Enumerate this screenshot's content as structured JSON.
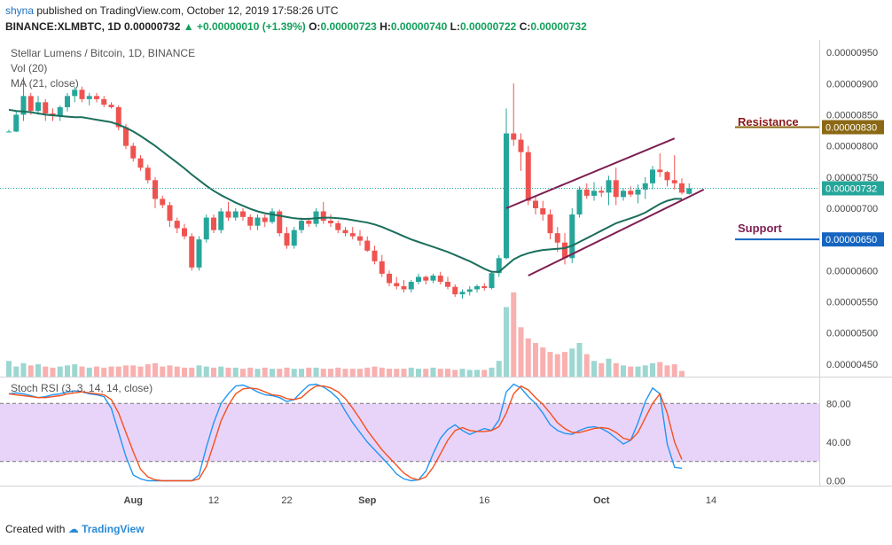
{
  "header": {
    "user": "shyna",
    "published_text": "published on TradingView.com, October 12, 2019 17:58:26 UTC",
    "symbol_line": "BINANCE:XLMBTC, 1D 0.00000732",
    "change": "+0.00000010 (+1.39%)",
    "o_label": "O:",
    "o_value": "0.00000723",
    "h_label": "H:",
    "h_value": "0.00000740",
    "l_label": "L:",
    "l_value": "0.00000722",
    "c_label": "C:",
    "c_value": "0.00000732"
  },
  "legend": {
    "title": "Stellar Lumens / Bitcoin, 1D, BINANCE",
    "vol": "Vol (20)",
    "ma": "MA (21, close)",
    "stoch": "Stoch RSI (3, 3, 14, 14, close)"
  },
  "annotations": {
    "resistance": "Resistance",
    "support": "Support"
  },
  "footer": {
    "created_with": "Created with",
    "brand": "TradingView"
  },
  "colors": {
    "up": "#26a69a",
    "down": "#ef5350",
    "ma": "#1b6e5c",
    "channel": "#7e1f52",
    "resistance": "#8b6914",
    "support": "#1565c0",
    "stoch_k": "#2196f3",
    "stoch_d": "#f4511e",
    "stoch_band": "#e1c6f7"
  },
  "chart_data": [
    {
      "type": "candlestick",
      "title": "Stellar Lumens / Bitcoin, 1D, BINANCE",
      "x_tick_labels": [
        "Aug",
        "12",
        "22",
        "Sep",
        "16",
        "Oct",
        "14"
      ],
      "y_tick_labels": [
        "0.00000950",
        "0.00000900",
        "0.00000850",
        "0.00000800",
        "0.00000750",
        "0.00000700",
        "0.00000600",
        "0.00000550",
        "0.00000500",
        "0.00000450"
      ],
      "ylim": [
        4.3e-06,
        9.7e-06
      ],
      "price_labels": {
        "resistance": "0.00000830",
        "current": "0.00000732",
        "support": "0.00000650"
      },
      "ohlc": [
        [
          822,
          826,
          822,
          823
        ],
        [
          823,
          855,
          822,
          850
        ],
        [
          850,
          910,
          840,
          880
        ],
        [
          880,
          885,
          850,
          856
        ],
        [
          856,
          880,
          850,
          870
        ],
        [
          870,
          875,
          840,
          852
        ],
        [
          852,
          860,
          840,
          848
        ],
        [
          848,
          865,
          840,
          862
        ],
        [
          862,
          885,
          855,
          880
        ],
        [
          880,
          895,
          870,
          890
        ],
        [
          890,
          895,
          870,
          875
        ],
        [
          875,
          885,
          865,
          880
        ],
        [
          880,
          885,
          870,
          875
        ],
        [
          875,
          880,
          862,
          866
        ],
        [
          866,
          870,
          860,
          862
        ],
        [
          862,
          865,
          825,
          830
        ],
        [
          830,
          835,
          795,
          800
        ],
        [
          800,
          805,
          775,
          780
        ],
        [
          780,
          785,
          760,
          765
        ],
        [
          765,
          770,
          740,
          745
        ],
        [
          745,
          750,
          700,
          715
        ],
        [
          715,
          720,
          700,
          705
        ],
        [
          705,
          710,
          670,
          680
        ],
        [
          680,
          685,
          660,
          668
        ],
        [
          668,
          675,
          650,
          655
        ],
        [
          655,
          660,
          600,
          605
        ],
        [
          605,
          655,
          600,
          650
        ],
        [
          650,
          690,
          645,
          685
        ],
        [
          685,
          690,
          660,
          665
        ],
        [
          665,
          700,
          660,
          695
        ],
        [
          695,
          710,
          680,
          685
        ],
        [
          685,
          700,
          680,
          695
        ],
        [
          695,
          700,
          680,
          686
        ],
        [
          686,
          690,
          665,
          672
        ],
        [
          672,
          690,
          665,
          685
        ],
        [
          685,
          690,
          670,
          678
        ],
        [
          678,
          700,
          675,
          695
        ],
        [
          695,
          698,
          655,
          660
        ],
        [
          660,
          670,
          635,
          640
        ],
        [
          640,
          670,
          635,
          665
        ],
        [
          665,
          685,
          660,
          680
        ],
        [
          680,
          685,
          670,
          675
        ],
        [
          675,
          700,
          670,
          695
        ],
        [
          695,
          710,
          675,
          680
        ],
        [
          680,
          690,
          670,
          676
        ],
        [
          676,
          680,
          660,
          665
        ],
        [
          665,
          670,
          655,
          660
        ],
        [
          660,
          670,
          650,
          655
        ],
        [
          655,
          665,
          640,
          648
        ],
        [
          648,
          655,
          630,
          632
        ],
        [
          632,
          640,
          610,
          615
        ],
        [
          615,
          625,
          590,
          595
        ],
        [
          595,
          600,
          575,
          580
        ],
        [
          580,
          590,
          570,
          575
        ],
        [
          575,
          585,
          565,
          570
        ],
        [
          570,
          585,
          565,
          582
        ],
        [
          582,
          595,
          578,
          590
        ],
        [
          590,
          592,
          578,
          584
        ],
        [
          584,
          595,
          580,
          592
        ],
        [
          592,
          598,
          578,
          582
        ],
        [
          582,
          590,
          570,
          574
        ],
        [
          574,
          578,
          558,
          562
        ],
        [
          562,
          570,
          555,
          566
        ],
        [
          566,
          575,
          560,
          570
        ],
        [
          570,
          578,
          565,
          575
        ],
        [
          575,
          580,
          568,
          572
        ],
        [
          572,
          600,
          570,
          596
        ],
        [
          596,
          625,
          590,
          620
        ],
        [
          620,
          860,
          618,
          820
        ],
        [
          820,
          900,
          800,
          810
        ],
        [
          810,
          820,
          760,
          790
        ],
        [
          790,
          800,
          705,
          712
        ],
        [
          712,
          720,
          690,
          700
        ],
        [
          700,
          712,
          680,
          690
        ],
        [
          690,
          698,
          650,
          660
        ],
        [
          660,
          670,
          630,
          645
        ],
        [
          645,
          660,
          610,
          620
        ],
        [
          620,
          700,
          612,
          690
        ],
        [
          690,
          735,
          685,
          730
        ],
        [
          730,
          740,
          715,
          720
        ],
        [
          720,
          742,
          712,
          728
        ],
        [
          728,
          735,
          718,
          725
        ],
        [
          725,
          752,
          705,
          745
        ],
        [
          745,
          765,
          705,
          718
        ],
        [
          718,
          732,
          712,
          728
        ],
        [
          728,
          735,
          718,
          722
        ],
        [
          722,
          738,
          708,
          730
        ],
        [
          730,
          750,
          715,
          740
        ],
        [
          740,
          768,
          730,
          762
        ],
        [
          762,
          788,
          750,
          758
        ],
        [
          758,
          760,
          735,
          745
        ],
        [
          745,
          785,
          730,
          740
        ],
        [
          740,
          748,
          722,
          725
        ],
        [
          723,
          740,
          722,
          732
        ]
      ],
      "ma21": [
        858,
        856,
        855,
        854,
        852,
        850,
        849,
        848,
        847,
        846,
        846,
        844,
        842,
        840,
        838,
        834,
        829,
        823,
        816,
        808,
        800,
        791,
        782,
        773,
        764,
        754,
        745,
        736,
        728,
        721,
        715,
        709,
        704,
        699,
        695,
        692,
        690,
        688,
        686,
        684,
        683,
        683,
        684,
        685,
        685,
        684,
        683,
        681,
        679,
        677,
        674,
        670,
        665,
        660,
        655,
        650,
        646,
        642,
        638,
        634,
        630,
        625,
        620,
        615,
        609,
        603,
        598,
        598,
        608,
        618,
        624,
        628,
        631,
        633,
        634,
        635,
        636,
        640,
        646,
        652,
        658,
        664,
        670,
        676,
        680,
        684,
        688,
        693,
        700,
        707,
        712,
        715,
        715
      ],
      "volume": [
        14,
        9,
        12,
        10,
        11,
        9,
        8,
        9,
        10,
        11,
        9,
        8,
        9,
        8,
        9,
        9,
        10,
        10,
        9,
        11,
        12,
        9,
        10,
        9,
        8,
        8,
        10,
        9,
        8,
        9,
        8,
        8,
        7,
        8,
        7,
        8,
        7,
        7,
        8,
        7,
        7,
        8,
        8,
        7,
        7,
        8,
        7,
        7,
        7,
        8,
        9,
        8,
        7,
        7,
        7,
        8,
        7,
        7,
        8,
        7,
        7,
        6,
        7,
        6,
        6,
        6,
        8,
        14,
        62,
        75,
        44,
        34,
        30,
        26,
        22,
        20,
        22,
        25,
        30,
        20,
        14,
        12,
        16,
        12,
        10,
        9,
        9,
        10,
        12,
        13,
        10,
        11,
        5
      ]
    },
    {
      "type": "line",
      "title": "Stoch RSI (3, 3, 14, 14, close)",
      "ylim": [
        -5,
        105
      ],
      "y_tick_labels": [
        "80.00",
        "40.00",
        "0.00"
      ],
      "band": [
        20,
        80
      ],
      "series": [
        {
          "name": "K",
          "values": [
            90,
            91,
            90,
            88,
            86,
            87,
            89,
            90,
            92,
            93,
            92,
            90,
            89,
            87,
            75,
            50,
            25,
            6,
            2,
            0,
            0,
            0,
            0,
            0,
            0,
            0,
            6,
            35,
            60,
            80,
            90,
            98,
            99,
            96,
            92,
            89,
            88,
            86,
            82,
            84,
            92,
            99,
            100,
            97,
            92,
            85,
            72,
            60,
            50,
            40,
            32,
            24,
            16,
            7,
            2,
            0,
            1,
            10,
            28,
            44,
            53,
            58,
            52,
            48,
            51,
            54,
            52,
            63,
            92,
            100,
            96,
            87,
            80,
            70,
            58,
            52,
            49,
            48,
            52,
            55,
            56,
            54,
            50,
            44,
            38,
            42,
            60,
            82,
            96,
            90,
            38,
            14,
            13
          ]
        },
        {
          "name": "D",
          "values": [
            90,
            89,
            88,
            87,
            86,
            86,
            87,
            88,
            90,
            91,
            92,
            91,
            90,
            89,
            84,
            70,
            50,
            30,
            12,
            4,
            1,
            0,
            0,
            0,
            0,
            0,
            2,
            15,
            38,
            62,
            78,
            90,
            95,
            96,
            95,
            92,
            89,
            88,
            85,
            84,
            86,
            93,
            98,
            98,
            96,
            92,
            85,
            75,
            64,
            52,
            42,
            32,
            24,
            16,
            8,
            3,
            1,
            4,
            14,
            28,
            42,
            52,
            55,
            52,
            51,
            51,
            52,
            56,
            70,
            90,
            98,
            94,
            86,
            79,
            70,
            60,
            54,
            50,
            50,
            52,
            54,
            55,
            54,
            50,
            44,
            42,
            50,
            65,
            80,
            90,
            70,
            40,
            22
          ]
        }
      ]
    }
  ]
}
